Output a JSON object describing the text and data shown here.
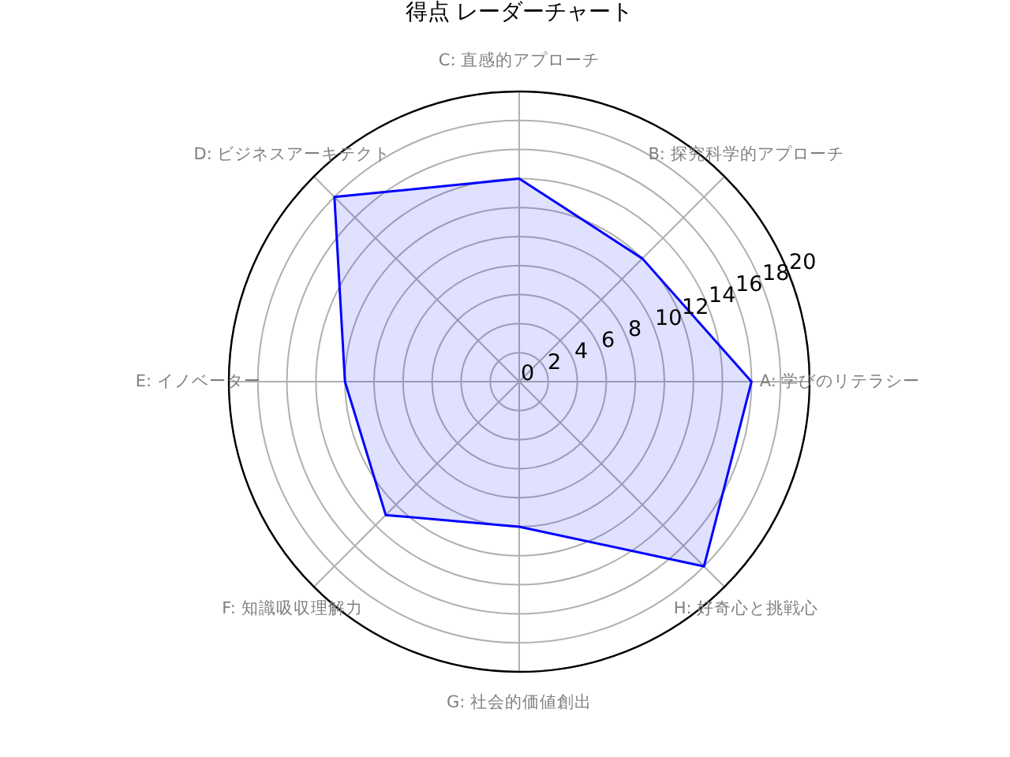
{
  "chart_data": {
    "type": "radar",
    "title": "得点 レーダーチャート",
    "categories": [
      "C: 直感的アプローチ",
      "B: 探究科学的アプローチ",
      "A: 学びのリテラシー",
      "H: 好奇心と挑戦心",
      "G: 社会的価値創出",
      "F: 知識吸収理解力",
      "E: イノベーター",
      "D: ビジネスアーキテクト"
    ],
    "series": [
      {
        "color": "#0000ff",
        "values": [
          14,
          12,
          16,
          18,
          10,
          13,
          12,
          18
        ]
      }
    ],
    "ylim": [
      0,
      20
    ],
    "yticks": [
      0,
      2,
      4,
      6,
      8,
      10,
      12,
      14,
      16,
      18,
      20
    ],
    "grid": true
  }
}
